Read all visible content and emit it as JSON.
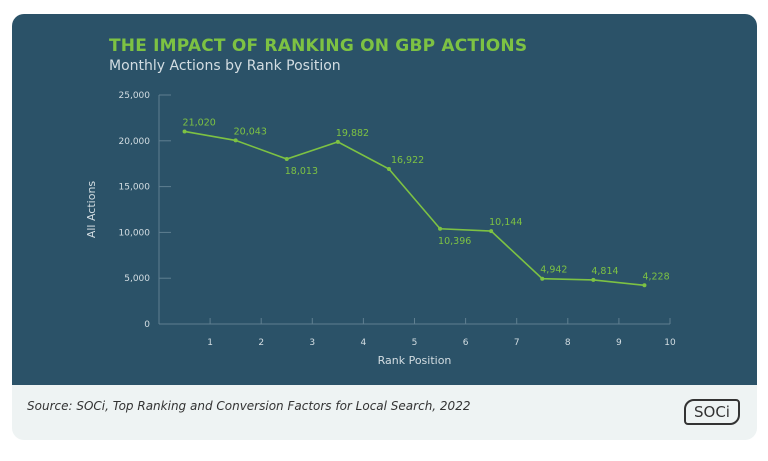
{
  "colors": {
    "background": "#2b5268",
    "line": "#7dc243",
    "text": "#d3dde2",
    "footer": "#eef3f3"
  },
  "chart_data": {
    "type": "line",
    "title": "THE IMPACT OF RANKING ON GBP ACTIONS",
    "subtitle": "Monthly Actions by Rank Position",
    "xlabel": "Rank Position",
    "ylabel": "All Actions",
    "xlim": [
      0,
      10
    ],
    "ylim": [
      0,
      25000
    ],
    "xticks": [
      "1",
      "2",
      "3",
      "4",
      "5",
      "6",
      "7",
      "8",
      "9",
      "10"
    ],
    "yticks": [
      "0",
      "5,000",
      "10,000",
      "15,000",
      "20,000",
      "25,000"
    ],
    "grid": false,
    "x": [
      0.5,
      1.5,
      2.5,
      3.5,
      4.5,
      5.5,
      6.5,
      7.5,
      8.5,
      9.5
    ],
    "values": [
      21020,
      20043,
      18013,
      19882,
      16922,
      10396,
      10144,
      4942,
      4814,
      4228
    ],
    "data_labels": [
      "21,020",
      "20,043",
      "18,013",
      "19,882",
      "16,922",
      "10,396",
      "10,144",
      "4,942",
      "4,814",
      "4,228"
    ]
  },
  "footer": {
    "source": "Source: SOCi, Top Ranking and Conversion Factors for Local Search, 2022",
    "logo": "SOCi"
  }
}
